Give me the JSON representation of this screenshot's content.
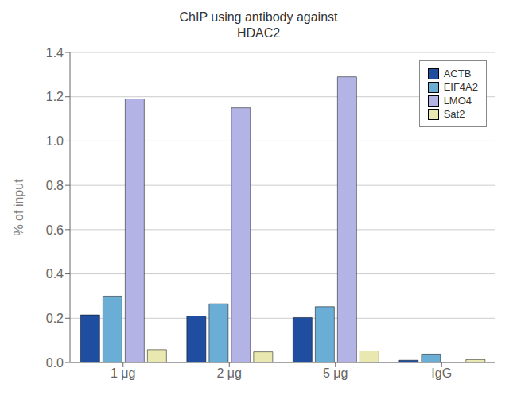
{
  "chart_data": {
    "type": "bar",
    "title": "ChIP using antibody against\nHDAC2",
    "ylabel": "% of input",
    "categories": [
      "1 μg",
      "2 μg",
      "5 μg",
      "IgG"
    ],
    "series": [
      {
        "name": "ACTB",
        "color": "#1f4ea1",
        "values": [
          0.215,
          0.21,
          0.203,
          0.01
        ]
      },
      {
        "name": "EIF4A2",
        "color": "#6aaed6",
        "values": [
          0.3,
          0.265,
          0.252,
          0.038
        ]
      },
      {
        "name": "LMO4",
        "color": "#b3b3e6",
        "values": [
          1.19,
          1.15,
          1.29,
          0.0
        ]
      },
      {
        "name": "Sat2",
        "color": "#e8e8b0",
        "values": [
          0.058,
          0.048,
          0.052,
          0.013
        ]
      }
    ],
    "ylim": [
      0,
      1.4
    ],
    "yticks": [
      {
        "value": 0,
        "label": "0.0"
      },
      0.2,
      0.4,
      0.6,
      0.8,
      {
        "value": 1,
        "label": "1.0"
      },
      1.2,
      1.4
    ],
    "grid": true,
    "legend": "upper right"
  }
}
